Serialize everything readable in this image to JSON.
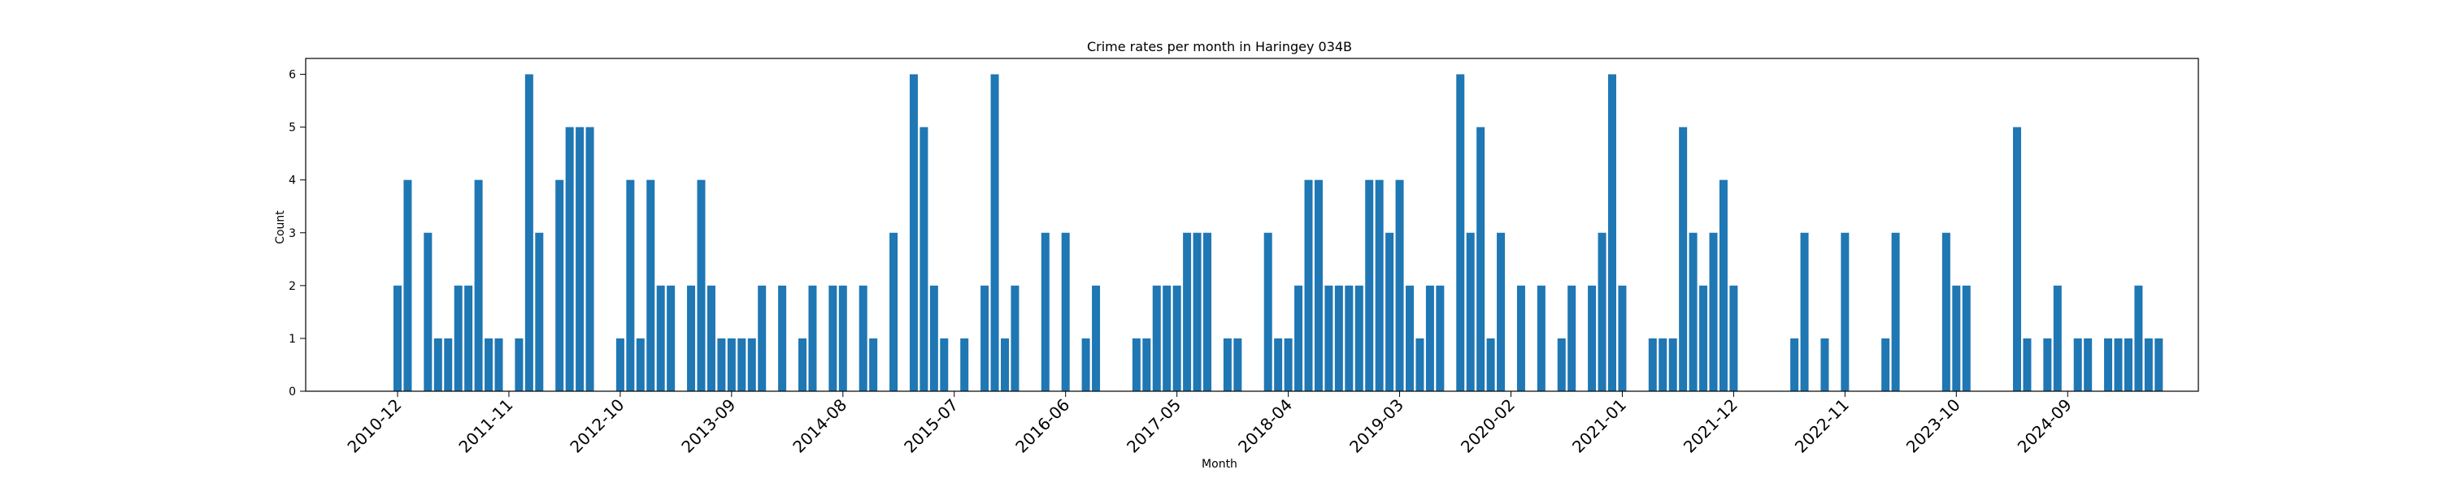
{
  "chart_data": {
    "type": "bar",
    "title": "Crime rates per month in Haringey 034B",
    "xlabel": "Month",
    "ylabel": "Count",
    "ylim": [
      0,
      6.3
    ],
    "yticks": [
      0,
      1,
      2,
      3,
      4,
      5,
      6
    ],
    "start_month": "2010-12",
    "xtick_labels": [
      "2010-12",
      "2011-11",
      "2012-10",
      "2013-09",
      "2014-08",
      "2015-07",
      "2016-06",
      "2017-05",
      "2018-04",
      "2019-03",
      "2020-02",
      "2021-01",
      "2021-12",
      "2022-11",
      "2023-10",
      "2024-09"
    ],
    "bar_color": "#1f77b4",
    "values": [
      2,
      4,
      0,
      3,
      1,
      1,
      2,
      2,
      4,
      1,
      1,
      0,
      1,
      6,
      3,
      0,
      4,
      5,
      5,
      5,
      0,
      0,
      1,
      4,
      1,
      4,
      2,
      2,
      0,
      2,
      4,
      2,
      1,
      1,
      1,
      1,
      2,
      0,
      2,
      0,
      1,
      2,
      0,
      2,
      2,
      0,
      2,
      1,
      0,
      3,
      0,
      6,
      5,
      2,
      1,
      0,
      1,
      0,
      2,
      6,
      1,
      2,
      0,
      0,
      3,
      0,
      3,
      0,
      1,
      2,
      0,
      0,
      0,
      1,
      1,
      2,
      2,
      2,
      3,
      3,
      3,
      0,
      1,
      1,
      0,
      0,
      3,
      1,
      1,
      2,
      4,
      4,
      2,
      2,
      2,
      2,
      4,
      4,
      3,
      4,
      2,
      1,
      2,
      2,
      0,
      6,
      3,
      5,
      1,
      3,
      0,
      2,
      0,
      2,
      0,
      1,
      2,
      0,
      2,
      3,
      6,
      2,
      0,
      0,
      1,
      1,
      1,
      5,
      3,
      2,
      3,
      4,
      2,
      0,
      0,
      0,
      0,
      0,
      1,
      3,
      0,
      1,
      0,
      3,
      0,
      0,
      0,
      1,
      3,
      0,
      0,
      0,
      0,
      3,
      2,
      2,
      0,
      0,
      0,
      0,
      5,
      1,
      0,
      1,
      2,
      0,
      1,
      1,
      0,
      1,
      1,
      1,
      2,
      1,
      1
    ]
  }
}
